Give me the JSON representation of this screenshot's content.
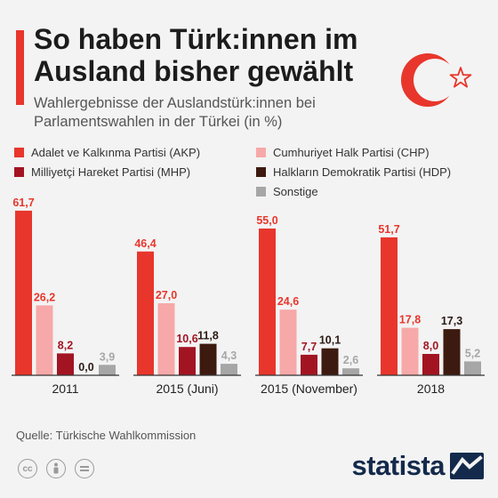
{
  "header": {
    "title": "So haben Türk:innen im Ausland bisher gewählt",
    "subtitle": "Wahlergebnisse der Auslandstürk:innen bei Parlamentswahlen in der Türkei (in %)"
  },
  "colors": {
    "AKP": "#e8362c",
    "CHP": "#f7a8a8",
    "MHP": "#a31422",
    "HDP": "#3d1a10",
    "Sonstige": "#a6a6a6",
    "accent": "#e8362c",
    "brand": "#142a4c"
  },
  "chart_data": {
    "type": "bar",
    "categories": [
      "2011",
      "2015 (Juni)",
      "2015 (November)",
      "2018"
    ],
    "series": [
      {
        "name": "Adalet ve Kalkınma Partisi (AKP)",
        "key": "AKP",
        "values": [
          61.7,
          46.4,
          55.0,
          51.7
        ]
      },
      {
        "name": "Cumhuriyet Halk Partisi (CHP)",
        "key": "CHP",
        "values": [
          26.2,
          27.0,
          24.6,
          17.8
        ]
      },
      {
        "name": "Milliyetçi Hareket Partisi (MHP)",
        "key": "MHP",
        "values": [
          8.2,
          10.6,
          7.7,
          8.0
        ]
      },
      {
        "name": "Halkların Demokratik Partisi (HDP)",
        "key": "HDP",
        "values": [
          0.0,
          11.8,
          10.1,
          17.3
        ]
      },
      {
        "name": "Sonstige",
        "key": "Sonstige",
        "values": [
          3.9,
          4.3,
          2.6,
          5.2
        ]
      }
    ],
    "data_labels": [
      [
        "61,7",
        "26,2",
        "8,2",
        "0,0",
        "3,9"
      ],
      [
        "46,4",
        "27,0",
        "10,6",
        "11,8",
        "4,3"
      ],
      [
        "55,0",
        "24,6",
        "7,7",
        "10,1",
        "2,6"
      ],
      [
        "51,7",
        "17,8",
        "8,0",
        "17,3",
        "5,2"
      ]
    ],
    "xlabel": "",
    "ylabel": "",
    "ylim": [
      0,
      62
    ],
    "grid": false,
    "legend_position": "top"
  },
  "legend": {
    "items": [
      {
        "label": "Adalet ve Kalkınma Partisi (AKP)",
        "key": "AKP"
      },
      {
        "label": "Milliyetçi Hareket Partisi (MHP)",
        "key": "MHP"
      },
      {
        "label": "Cumhuriyet Halk Partisi (CHP)",
        "key": "CHP"
      },
      {
        "label": "Halkların Demokratik Partisi (HDP)",
        "key": "HDP"
      },
      {
        "label": "Sonstige",
        "key": "Sonstige"
      }
    ]
  },
  "footer": {
    "source": "Quelle: Türkische Wahlkommission",
    "brand": "statista",
    "icons": [
      "cc-icon",
      "by-icon",
      "nd-icon"
    ]
  }
}
